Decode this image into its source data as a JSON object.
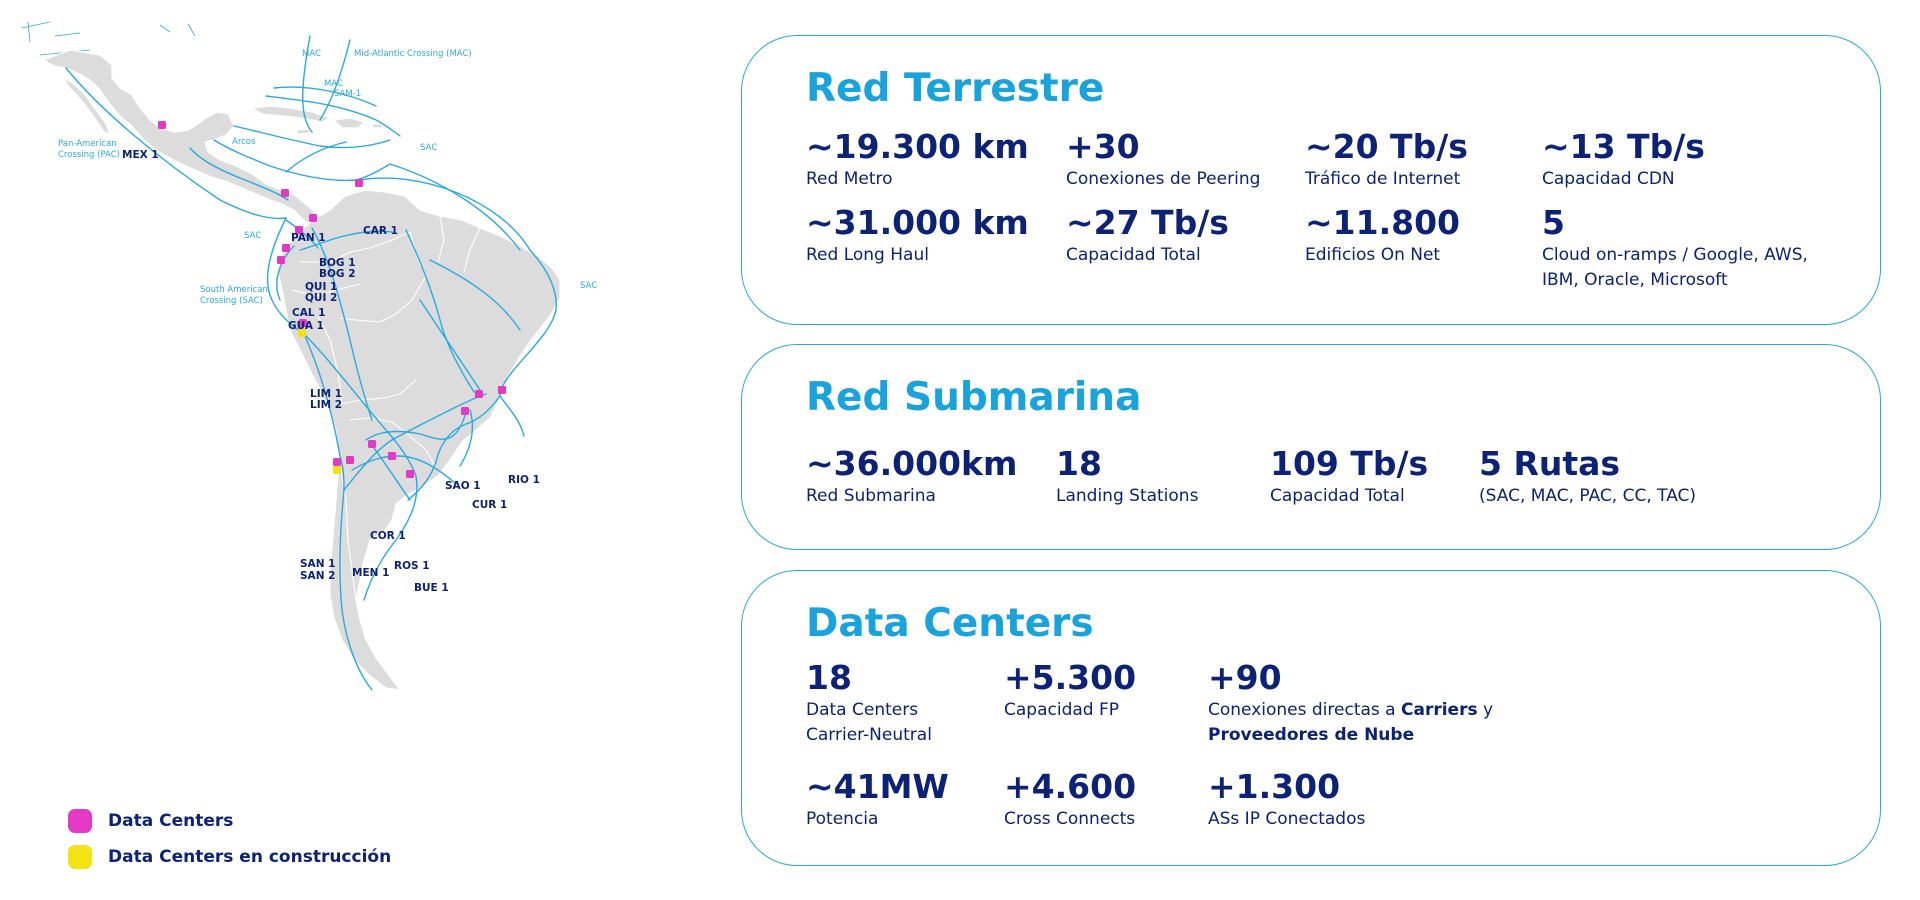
{
  "map": {
    "sites": [
      {
        "code": "MEX 1",
        "status": "active"
      },
      {
        "code": "PAN 1",
        "status": "active"
      },
      {
        "code": "CAR 1",
        "status": "active"
      },
      {
        "code": "BOG 1",
        "status": "active"
      },
      {
        "code": "BOG 2",
        "status": "active"
      },
      {
        "code": "QUI 1",
        "status": "active"
      },
      {
        "code": "QUI 2",
        "status": "active"
      },
      {
        "code": "CAL 1",
        "status": "active"
      },
      {
        "code": "GUA 1",
        "status": "active"
      },
      {
        "code": "LIM 1",
        "status": "active"
      },
      {
        "code": "LIM 2",
        "status": "construction"
      },
      {
        "code": "SAO 1",
        "status": "active"
      },
      {
        "code": "RIO 1",
        "status": "active"
      },
      {
        "code": "CUR 1",
        "status": "active"
      },
      {
        "code": "COR 1",
        "status": "active"
      },
      {
        "code": "SAN 1",
        "status": "active"
      },
      {
        "code": "SAN 2",
        "status": "construction"
      },
      {
        "code": "MEN 1",
        "status": "active"
      },
      {
        "code": "ROS 1",
        "status": "active"
      },
      {
        "code": "BUE 1",
        "status": "active"
      }
    ],
    "cables": {
      "mac_1": "MAC",
      "mac_full": "Mid-Atlantic Crossing (MAC)",
      "mac_2": "MAC",
      "sam1": "SAM-1",
      "pac": [
        "Pan-American",
        "Crossing (PAC)"
      ],
      "arcos": "Arcos",
      "sac_1": "SAC",
      "sac_2": "SAC",
      "sac_3": "SAC",
      "sac_long": [
        "South American",
        "Crossing (SAC)"
      ]
    },
    "colors": {
      "land": "#dcdcdc",
      "border": "#ffffff",
      "cable": "#2aa9e0",
      "data_center": "#e23ac4",
      "construction": "#f4e213",
      "label": "#0c2277"
    }
  },
  "legend": {
    "data_centers": "Data Centers",
    "construction": "Data Centers en construcción"
  },
  "terrestre": {
    "title": "Red Terrestre",
    "stats": [
      {
        "value": "~19.300 km",
        "label": "Red Metro"
      },
      {
        "value": "+30",
        "label": "Conexiones de Peering"
      },
      {
        "value": "~20 Tb/s",
        "label": "Tráfico de Internet"
      },
      {
        "value": "~13 Tb/s",
        "label": "Capacidad CDN"
      },
      {
        "value": "~31.000 km",
        "label": "Red Long Haul"
      },
      {
        "value": "~27 Tb/s",
        "label": "Capacidad Total"
      },
      {
        "value": "~11.800",
        "label": "Edificios On Net"
      },
      {
        "value": "5",
        "label_1": "Cloud on-ramps / Google, AWS,",
        "label_2": "IBM, Oracle, Microsoft"
      }
    ]
  },
  "submarina": {
    "title": "Red Submarina",
    "stats": [
      {
        "value": "~36.000km",
        "label": "Red Submarina"
      },
      {
        "value": "18",
        "label": "Landing Stations"
      },
      {
        "value": "109 Tb/s",
        "label": "Capacidad Total"
      },
      {
        "value": "5 Rutas",
        "label": "(SAC, MAC, PAC, CC, TAC)"
      }
    ]
  },
  "datacenters": {
    "title": "Data Centers",
    "stats": [
      {
        "value": "18",
        "label_1": "Data Centers",
        "label_2": "Carrier-Neutral"
      },
      {
        "value": "+5.300",
        "label": "Capacidad FP"
      },
      {
        "value": "+90",
        "label_pre": "Conexiones directas a ",
        "label_bold_1": "Carriers",
        "label_mid": " y",
        "label_bold_2": "Proveedores de Nube"
      },
      {
        "value": "~41MW",
        "label": "Potencia"
      },
      {
        "value": "+4.600",
        "label": "Cross Connects"
      },
      {
        "value": "+1.300",
        "label": "ASs IP Conectados"
      }
    ]
  }
}
